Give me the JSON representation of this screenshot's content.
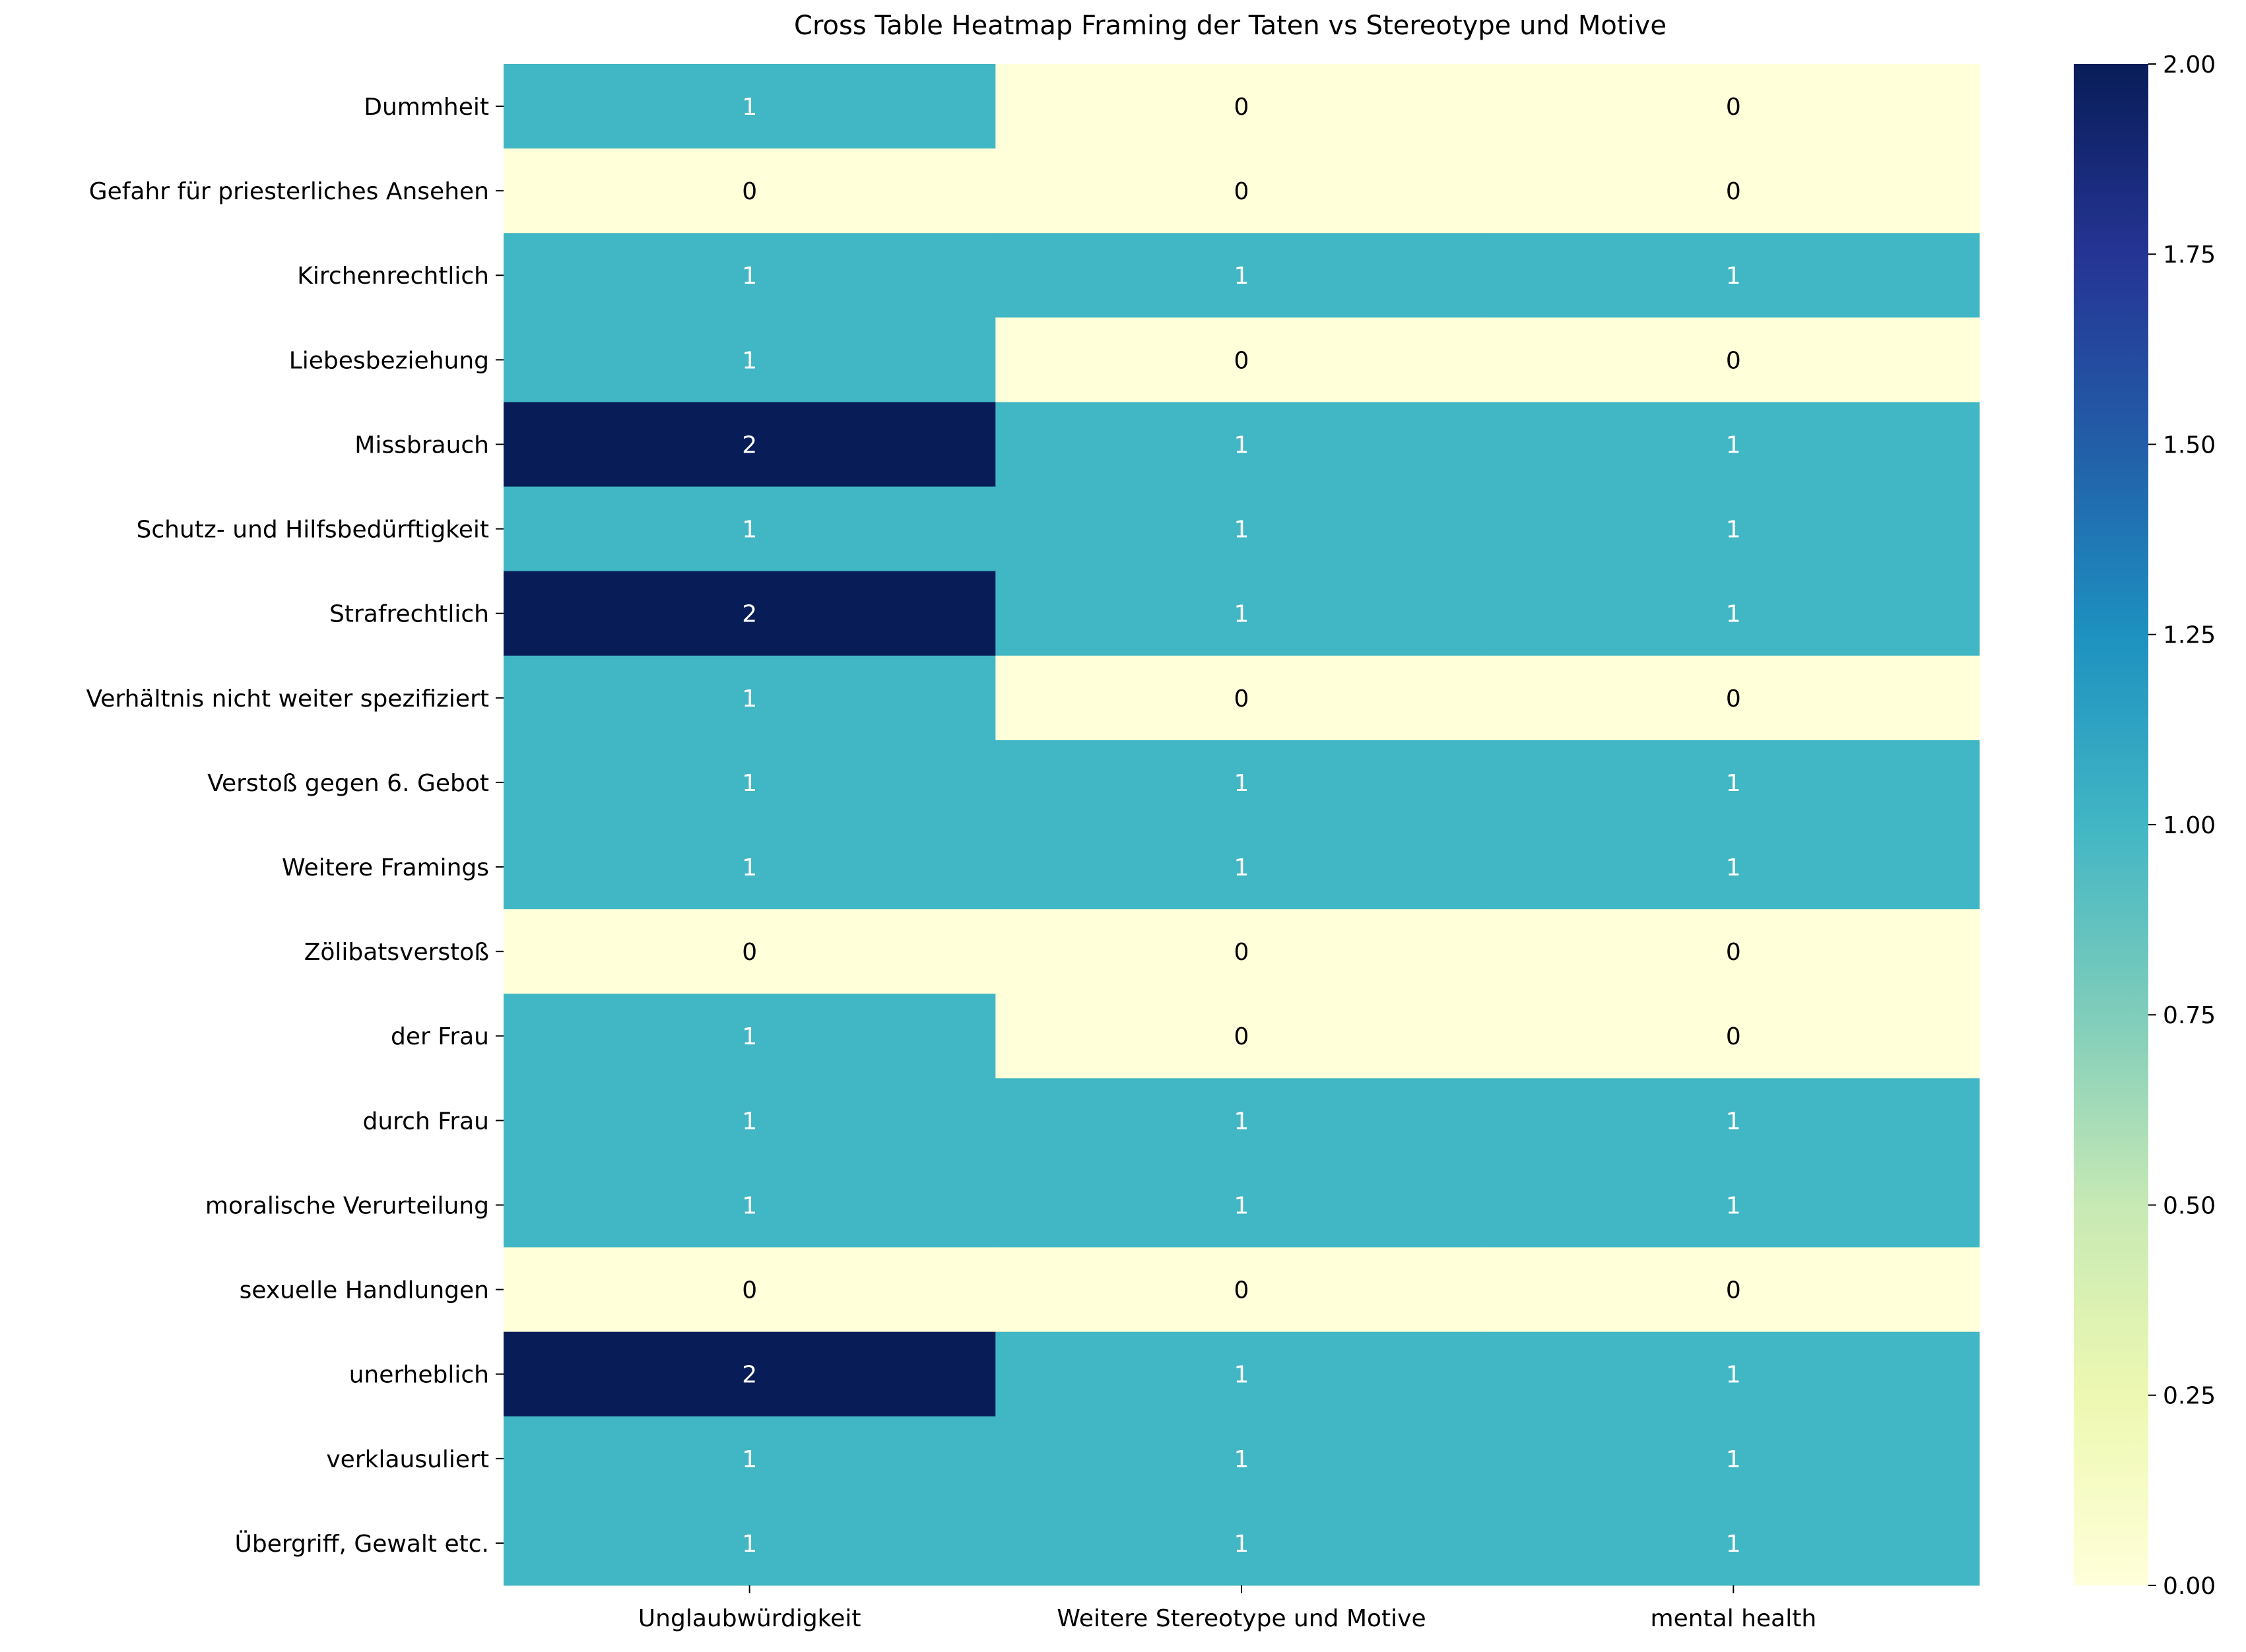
{
  "chart_data": {
    "type": "heatmap",
    "title": "Cross Table Heatmap Framing der Taten vs Stereotype und Motive",
    "xlabel": "",
    "ylabel": "",
    "rows": [
      "Dummheit",
      "Gefahr für priesterliches Ansehen",
      "Kirchenrechtlich",
      "Liebesbeziehung",
      "Missbrauch",
      "Schutz- und Hilfsbedürftigkeit",
      "Strafrechtlich",
      "Verhältnis nicht weiter spezifiziert",
      "Verstoß gegen 6. Gebot",
      "Weitere Framings",
      "Zölibatsverstoß",
      "der Frau",
      "durch Frau",
      "moralische Verurteilung",
      "sexuelle Handlungen",
      "unerheblich",
      "verklausuliert",
      "Übergriff, Gewalt etc."
    ],
    "columns": [
      "Unglaubwürdigkeit",
      "Weitere Stereotype und Motive",
      "mental health"
    ],
    "values": [
      [
        1,
        0,
        0
      ],
      [
        0,
        0,
        0
      ],
      [
        1,
        1,
        1
      ],
      [
        1,
        0,
        0
      ],
      [
        2,
        1,
        1
      ],
      [
        1,
        1,
        1
      ],
      [
        2,
        1,
        1
      ],
      [
        1,
        0,
        0
      ],
      [
        1,
        1,
        1
      ],
      [
        1,
        1,
        1
      ],
      [
        0,
        0,
        0
      ],
      [
        1,
        0,
        0
      ],
      [
        1,
        1,
        1
      ],
      [
        1,
        1,
        1
      ],
      [
        0,
        0,
        0
      ],
      [
        2,
        1,
        1
      ],
      [
        1,
        1,
        1
      ],
      [
        1,
        1,
        1
      ]
    ],
    "colormap": "YlGnBu",
    "colors": {
      "0": "#ffffd9",
      "1": "#41b6c4",
      "2": "#081d58"
    },
    "vmin": 0,
    "vmax": 2,
    "colorbar_ticks": [
      "0.00",
      "0.25",
      "0.50",
      "0.75",
      "1.00",
      "1.25",
      "1.50",
      "1.75",
      "2.00"
    ],
    "annotations": true,
    "grid": false,
    "legend": "colorbar-right"
  }
}
